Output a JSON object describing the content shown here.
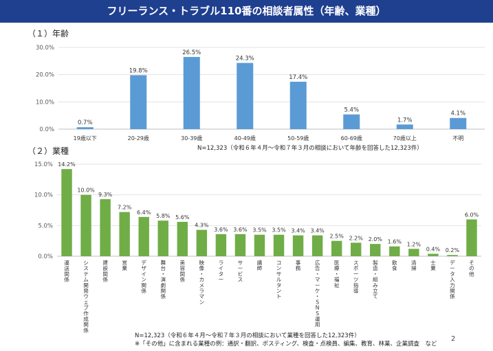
{
  "header": {
    "title": "フリーランス・トラブル110番の相談者属性（年齢、業種）"
  },
  "sections": {
    "age_label": "（１）年齢",
    "industry_label": "（２）業種"
  },
  "notes": {
    "age_note": "N=12,323（令和６年４月～令和７年３月の相談において年齢を回答した12,323件）",
    "industry_note": "N=12,323（令和６年４月～令和７年３月の相談において業種を回答した12,323件）",
    "other_note": "※「その他」に含まれる業種の例：通訳・翻訳、ポスティング、検査・点検員、編集、教育、林業、企業調査　など"
  },
  "page_number": "2",
  "chart_data": [
    {
      "type": "bar",
      "categories": [
        "19歳以下",
        "20-29歳",
        "30-39歳",
        "40-49歳",
        "50-59歳",
        "60-69歳",
        "70歳以上",
        "不明"
      ],
      "values": [
        0.7,
        19.8,
        26.5,
        24.3,
        17.4,
        5.4,
        1.7,
        4.1
      ],
      "data_labels": [
        "0.7%",
        "19.8%",
        "26.5%",
        "24.3%",
        "17.4%",
        "5.4%",
        "1.7%",
        "4.1%"
      ],
      "yticks": [
        "0.0%",
        "10.0%",
        "20.0%",
        "30.0%"
      ],
      "ylim": [
        0,
        30
      ],
      "color": "#5b9bd5",
      "grid": true
    },
    {
      "type": "bar",
      "categories": [
        "運送関係",
        "システム開発ウェブ作成関係",
        "建設関係",
        "営業",
        "デザイン関係",
        "舞台・演劇関係",
        "美容関係",
        "映像・カメラマン",
        "ライター",
        "サービス",
        "講師",
        "コンサルタント",
        "事務",
        "広告・マーケ・SNS運用",
        "医療・福祉",
        "スポーツ指導",
        "製造・組み立て",
        "飲食",
        "清掃",
        "士業",
        "データ入力関係",
        "その他"
      ],
      "values": [
        14.2,
        10.0,
        9.3,
        7.2,
        6.4,
        5.8,
        5.6,
        4.3,
        3.6,
        3.6,
        3.5,
        3.5,
        3.4,
        3.4,
        2.5,
        2.2,
        2.0,
        1.6,
        1.2,
        0.4,
        0.2,
        6.0
      ],
      "data_labels": [
        "14.2%",
        "10.0%",
        "9.3%",
        "7.2%",
        "6.4%",
        "5.8%",
        "5.6%",
        "4.3%",
        "3.6%",
        "3.6%",
        "3.5%",
        "3.5%",
        "3.4%",
        "3.4%",
        "2.5%",
        "2.2%",
        "2.0%",
        "1.6%",
        "1.2%",
        "0.4%",
        "0.2%",
        "6.0%"
      ],
      "yticks": [
        "0.0%",
        "5.0%",
        "10.0%",
        "15.0%"
      ],
      "ylim": [
        0,
        15
      ],
      "color": "#70ad47",
      "grid": true
    }
  ]
}
